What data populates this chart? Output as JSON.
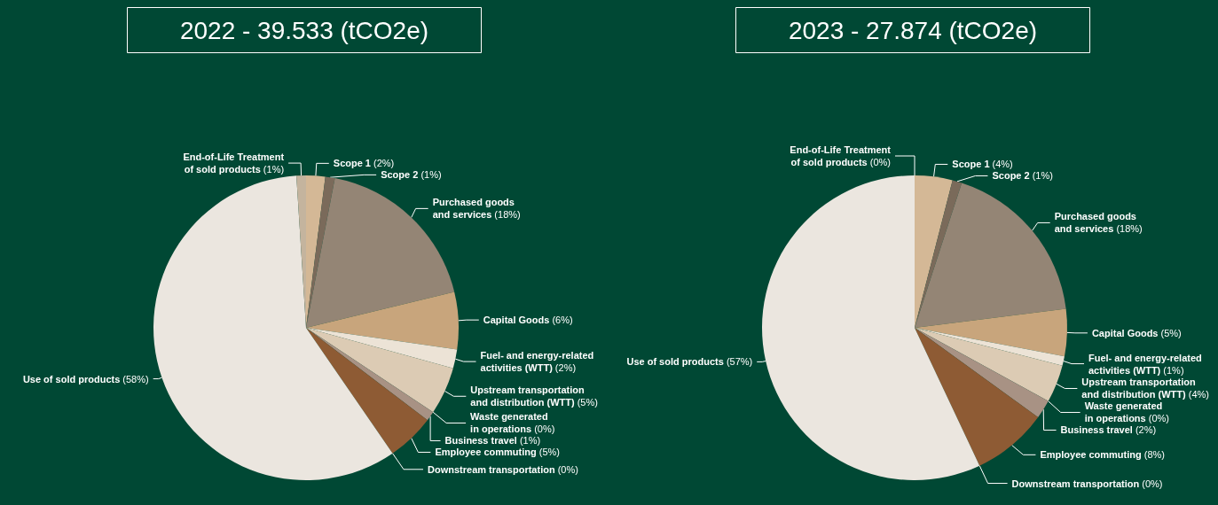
{
  "chart_data": [
    {
      "type": "pie",
      "title": "2022 - 39.533 (tCO2e)",
      "categories": [
        "Scope 1",
        "Scope 2",
        "Purchased goods\nand services",
        "Capital Goods",
        "Fuel- and energy-related\nactivities (WTT)",
        "Upstream transportation\nand distribution (WTT)",
        "Waste generated\nin operations",
        "Business travel",
        "Employee commuting",
        "Downstream transportation",
        "Use of sold products",
        "End-of-Life Treatment\nof sold products"
      ],
      "values": [
        2,
        1,
        18,
        6,
        2,
        5,
        0,
        1,
        5,
        0,
        58,
        1
      ],
      "value_labels": [
        "(2%)",
        "(1%)",
        "(18%)",
        "(6%)",
        "(2%)",
        "(5%)",
        "(0%)",
        "(1%)",
        "(5%)",
        "(0%)",
        "(58%)",
        "(1%)"
      ],
      "colors": [
        "#d4b896",
        "#7a6a5a",
        "#948575",
        "#c8a57c",
        "#ece3d6",
        "#dccbb4",
        "#a0806a",
        "#a89284",
        "#8e5b34",
        "#8a9a90",
        "#ebe6df",
        "#c4b49e"
      ]
    },
    {
      "type": "pie",
      "title": "2023 - 27.874 (tCO2e)",
      "categories": [
        "Scope 1",
        "Scope 2",
        "Purchased goods\nand services",
        "Capital Goods",
        "Fuel- and energy-related\nactivities (WTT)",
        "Upstream transportation\nand distribution (WTT)",
        "Waste generated\nin operations",
        "Business travel",
        "Employee commuting",
        "Downstream transportation",
        "Use of sold products",
        "End-of-Life Treatment\nof sold products"
      ],
      "values": [
        4,
        1,
        18,
        5,
        1,
        4,
        0,
        2,
        8,
        0,
        57,
        0
      ],
      "value_labels": [
        "(4%)",
        "(1%)",
        "(18%)",
        "(5%)",
        "(1%)",
        "(4%)",
        "(0%)",
        "(2%)",
        "(8%)",
        "(0%)",
        "(57%)",
        "(0%)"
      ],
      "colors": [
        "#d4b896",
        "#7a6a5a",
        "#948575",
        "#c8a57c",
        "#ece3d6",
        "#dccbb4",
        "#a0806a",
        "#a89284",
        "#8e5b34",
        "#8a9a90",
        "#ebe6df",
        "#c4b49e"
      ]
    }
  ]
}
